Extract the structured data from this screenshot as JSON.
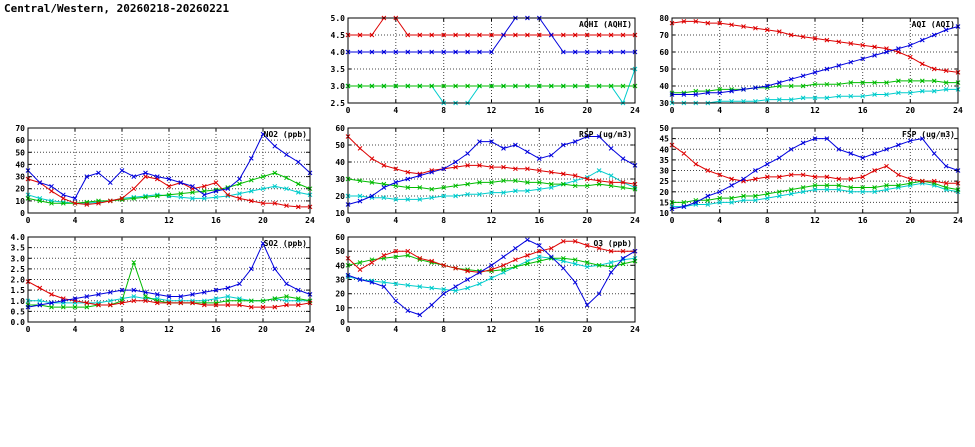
{
  "page_title": "Central/Western, 20260218-20260221",
  "colors": {
    "blue": "#0000dd",
    "red": "#dd0000",
    "green": "#00bb00",
    "cyan": "#00cccc",
    "grid": "#444444",
    "axis": "#000000",
    "background": "#ffffff"
  },
  "chart_data": [
    {
      "id": "aqhi",
      "type": "line",
      "title": "AQHI (AQHI)",
      "xlim": [
        0,
        24
      ],
      "xticks": [
        0,
        4,
        8,
        12,
        16,
        20,
        24
      ],
      "ylim": [
        2.5,
        5.0
      ],
      "yticks": [
        2.5,
        3.0,
        3.5,
        4.0,
        4.5,
        5.0
      ],
      "ytick_labels": [
        "2.5",
        "3.0",
        "3.5",
        "4.0",
        "4.5",
        "5.0"
      ],
      "series": [
        {
          "name": "station-cyan",
          "color": "#00cccc",
          "values": [
            3,
            3,
            3,
            3,
            3,
            3,
            3,
            3,
            2.5,
            2.5,
            2.5,
            3,
            3,
            3,
            3,
            3,
            3,
            3,
            3,
            3,
            3,
            3,
            3,
            2.5,
            3.5
          ]
        },
        {
          "name": "station-green",
          "color": "#00bb00",
          "values": [
            3,
            3,
            3,
            3,
            3,
            3,
            3,
            3,
            3,
            3,
            3,
            3,
            3,
            3,
            3,
            3,
            3,
            3,
            3,
            3,
            3,
            3,
            3,
            3,
            3
          ]
        },
        {
          "name": "station-red",
          "color": "#dd0000",
          "values": [
            4.5,
            4.5,
            4.5,
            5,
            5,
            4.5,
            4.5,
            4.5,
            4.5,
            4.5,
            4.5,
            4.5,
            4.5,
            4.5,
            4.5,
            4.5,
            4.5,
            4.5,
            4.5,
            4.5,
            4.5,
            4.5,
            4.5,
            4.5,
            4.5
          ]
        },
        {
          "name": "station-blue",
          "color": "#0000dd",
          "values": [
            4,
            4,
            4,
            4,
            4,
            4,
            4,
            4,
            4,
            4,
            4,
            4,
            4,
            4.5,
            5,
            5,
            5,
            4.5,
            4,
            4,
            4,
            4,
            4,
            4,
            4
          ]
        }
      ]
    },
    {
      "id": "aqi",
      "type": "line",
      "title": "AQI (AQI)",
      "xlim": [
        0,
        24
      ],
      "xticks": [
        0,
        4,
        8,
        12,
        16,
        20,
        24
      ],
      "ylim": [
        30,
        80
      ],
      "yticks": [
        30,
        40,
        50,
        60,
        70,
        80
      ],
      "ytick_labels": [
        "30",
        "40",
        "50",
        "60",
        "70",
        "80"
      ],
      "series": [
        {
          "name": "station-cyan",
          "color": "#00cccc",
          "values": [
            30,
            30,
            30,
            30,
            31,
            31,
            31,
            31,
            32,
            32,
            32,
            33,
            33,
            33,
            34,
            34,
            34,
            35,
            35,
            36,
            36,
            37,
            37,
            38,
            38
          ]
        },
        {
          "name": "station-green",
          "color": "#00bb00",
          "values": [
            36,
            36,
            37,
            37,
            38,
            38,
            38,
            39,
            39,
            40,
            40,
            40,
            41,
            41,
            41,
            42,
            42,
            42,
            42,
            43,
            43,
            43,
            43,
            42,
            42
          ]
        },
        {
          "name": "station-red",
          "color": "#dd0000",
          "values": [
            77,
            78,
            78,
            77,
            77,
            76,
            75,
            74,
            73,
            72,
            70,
            69,
            68,
            67,
            66,
            65,
            64,
            63,
            62,
            60,
            57,
            53,
            50,
            49,
            48
          ]
        },
        {
          "name": "station-blue",
          "color": "#0000dd",
          "values": [
            35,
            35,
            35,
            36,
            36,
            37,
            38,
            39,
            40,
            42,
            44,
            46,
            48,
            50,
            52,
            54,
            56,
            58,
            60,
            62,
            64,
            67,
            70,
            73,
            75
          ]
        }
      ]
    },
    {
      "id": "no2",
      "type": "line",
      "title": "NO2 (ppb)",
      "xlim": [
        0,
        24
      ],
      "xticks": [
        0,
        4,
        8,
        12,
        16,
        20,
        24
      ],
      "ylim": [
        0,
        70
      ],
      "yticks": [
        0,
        10,
        20,
        30,
        40,
        50,
        60,
        70
      ],
      "ytick_labels": [
        "0",
        "10",
        "20",
        "30",
        "40",
        "50",
        "60",
        "70"
      ],
      "series": [
        {
          "name": "station-cyan",
          "color": "#00cccc",
          "values": [
            15,
            12,
            10,
            9,
            8,
            8,
            9,
            10,
            12,
            13,
            14,
            15,
            14,
            13,
            12,
            12,
            13,
            14,
            16,
            18,
            20,
            22,
            20,
            17,
            15
          ]
        },
        {
          "name": "station-green",
          "color": "#00bb00",
          "values": [
            12,
            10,
            8,
            8,
            8,
            9,
            10,
            10,
            11,
            12,
            13,
            14,
            15,
            16,
            17,
            18,
            19,
            21,
            24,
            27,
            30,
            33,
            29,
            24,
            20
          ]
        },
        {
          "name": "station-red",
          "color": "#dd0000",
          "values": [
            28,
            25,
            18,
            12,
            8,
            7,
            8,
            10,
            12,
            20,
            30,
            28,
            22,
            25,
            20,
            22,
            25,
            15,
            12,
            10,
            8,
            8,
            6,
            5,
            5
          ]
        },
        {
          "name": "station-blue",
          "color": "#0000dd",
          "values": [
            35,
            25,
            22,
            15,
            12,
            30,
            33,
            25,
            35,
            30,
            33,
            30,
            28,
            25,
            22,
            15,
            18,
            20,
            28,
            45,
            65,
            55,
            48,
            42,
            33
          ]
        }
      ]
    },
    {
      "id": "rsp",
      "type": "line",
      "title": "RSP (ug/m3)",
      "xlim": [
        0,
        24
      ],
      "xticks": [
        0,
        4,
        8,
        12,
        16,
        20,
        24
      ],
      "ylim": [
        10,
        60
      ],
      "yticks": [
        10,
        20,
        30,
        40,
        50,
        60
      ],
      "ytick_labels": [
        "10",
        "20",
        "30",
        "40",
        "50",
        "60"
      ],
      "series": [
        {
          "name": "station-cyan",
          "color": "#00cccc",
          "values": [
            20,
            20,
            19,
            19,
            18,
            18,
            18,
            19,
            20,
            20,
            21,
            21,
            22,
            22,
            23,
            23,
            24,
            25,
            27,
            29,
            31,
            35,
            32,
            28,
            25
          ]
        },
        {
          "name": "station-green",
          "color": "#00bb00",
          "values": [
            30,
            29,
            28,
            27,
            26,
            25,
            25,
            24,
            25,
            26,
            27,
            28,
            28,
            29,
            29,
            28,
            28,
            27,
            27,
            26,
            26,
            27,
            26,
            25,
            24
          ]
        },
        {
          "name": "station-red",
          "color": "#dd0000",
          "values": [
            55,
            48,
            42,
            38,
            36,
            34,
            33,
            35,
            36,
            37,
            38,
            38,
            37,
            37,
            36,
            36,
            35,
            34,
            33,
            32,
            30,
            29,
            28,
            28,
            27
          ]
        },
        {
          "name": "station-blue",
          "color": "#0000dd",
          "values": [
            15,
            17,
            20,
            25,
            28,
            30,
            32,
            34,
            36,
            40,
            45,
            52,
            52,
            48,
            50,
            46,
            42,
            44,
            50,
            52,
            55,
            55,
            48,
            42,
            38
          ]
        }
      ]
    },
    {
      "id": "fsp",
      "type": "line",
      "title": "FSP (ug/m3)",
      "xlim": [
        0,
        24
      ],
      "xticks": [
        0,
        4,
        8,
        12,
        16,
        20,
        24
      ],
      "ylim": [
        10,
        50
      ],
      "yticks": [
        10,
        15,
        20,
        25,
        30,
        35,
        40,
        45,
        50
      ],
      "ytick_labels": [
        "10",
        "15",
        "20",
        "25",
        "30",
        "35",
        "40",
        "45",
        "50"
      ],
      "series": [
        {
          "name": "station-cyan",
          "color": "#00cccc",
          "values": [
            13,
            13,
            14,
            14,
            15,
            15,
            16,
            16,
            17,
            18,
            19,
            20,
            21,
            21,
            21,
            20,
            20,
            20,
            21,
            22,
            23,
            24,
            23,
            21,
            20
          ]
        },
        {
          "name": "station-green",
          "color": "#00bb00",
          "values": [
            15,
            15,
            16,
            16,
            17,
            17,
            18,
            18,
            19,
            20,
            21,
            22,
            23,
            23,
            23,
            22,
            22,
            22,
            23,
            23,
            24,
            25,
            24,
            22,
            21
          ]
        },
        {
          "name": "station-red",
          "color": "#dd0000",
          "values": [
            42,
            38,
            33,
            30,
            28,
            26,
            25,
            26,
            27,
            27,
            28,
            28,
            27,
            27,
            26,
            26,
            27,
            30,
            32,
            28,
            26,
            25,
            25,
            24,
            24
          ]
        },
        {
          "name": "station-blue",
          "color": "#0000dd",
          "values": [
            12,
            13,
            15,
            18,
            20,
            23,
            26,
            30,
            33,
            36,
            40,
            43,
            45,
            45,
            40,
            38,
            36,
            38,
            40,
            42,
            44,
            45,
            38,
            32,
            30
          ]
        }
      ]
    },
    {
      "id": "so2",
      "type": "line",
      "title": "SO2 (ppb)",
      "xlim": [
        0,
        24
      ],
      "xticks": [
        0,
        4,
        8,
        12,
        16,
        20,
        24
      ],
      "ylim": [
        0.0,
        4.0
      ],
      "yticks": [
        0.0,
        0.5,
        1.0,
        1.5,
        2.0,
        2.5,
        3.0,
        3.5,
        4.0
      ],
      "ytick_labels": [
        "0.0",
        "0.5",
        "1.0",
        "1.5",
        "2.0",
        "2.5",
        "3.0",
        "3.5",
        "4.0"
      ],
      "series": [
        {
          "name": "station-cyan",
          "color": "#00cccc",
          "values": [
            1.0,
            1.0,
            0.9,
            0.9,
            0.9,
            0.9,
            0.9,
            1.0,
            1.1,
            1.2,
            1.1,
            1.1,
            1.0,
            1.0,
            1.0,
            1.0,
            1.1,
            1.2,
            1.1,
            1.0,
            1.0,
            1.1,
            1.0,
            1.0,
            1.0
          ]
        },
        {
          "name": "station-green",
          "color": "#00bb00",
          "values": [
            0.8,
            0.8,
            0.7,
            0.7,
            0.7,
            0.7,
            0.8,
            0.8,
            1.0,
            2.8,
            1.2,
            1.0,
            0.9,
            0.9,
            0.9,
            0.9,
            0.9,
            1.0,
            1.0,
            1.0,
            1.0,
            1.1,
            1.2,
            1.1,
            1.0
          ]
        },
        {
          "name": "station-red",
          "color": "#dd0000",
          "values": [
            1.9,
            1.6,
            1.3,
            1.1,
            1.0,
            0.9,
            0.8,
            0.8,
            0.9,
            1.0,
            1.0,
            0.9,
            0.9,
            0.9,
            0.9,
            0.8,
            0.8,
            0.8,
            0.8,
            0.7,
            0.7,
            0.7,
            0.8,
            0.8,
            0.9
          ]
        },
        {
          "name": "station-blue",
          "color": "#0000dd",
          "values": [
            0.7,
            0.8,
            0.9,
            1.0,
            1.1,
            1.2,
            1.3,
            1.4,
            1.5,
            1.5,
            1.4,
            1.3,
            1.2,
            1.2,
            1.3,
            1.4,
            1.5,
            1.6,
            1.8,
            2.5,
            3.7,
            2.5,
            1.8,
            1.5,
            1.3
          ]
        }
      ]
    },
    {
      "id": "o3",
      "type": "line",
      "title": "O3 (ppb)",
      "xlim": [
        0,
        24
      ],
      "xticks": [
        0,
        4,
        8,
        12,
        16,
        20,
        24
      ],
      "ylim": [
        0,
        60
      ],
      "yticks": [
        0,
        10,
        20,
        30,
        40,
        50,
        60
      ],
      "ytick_labels": [
        "0",
        "10",
        "20",
        "30",
        "40",
        "50",
        "60"
      ],
      "series": [
        {
          "name": "station-cyan",
          "color": "#00cccc",
          "values": [
            32,
            30,
            29,
            28,
            27,
            26,
            25,
            24,
            23,
            22,
            24,
            27,
            31,
            35,
            39,
            43,
            46,
            45,
            43,
            41,
            39,
            40,
            42,
            44,
            45
          ]
        },
        {
          "name": "station-green",
          "color": "#00bb00",
          "values": [
            40,
            42,
            44,
            45,
            46,
            47,
            44,
            42,
            40,
            38,
            37,
            36,
            36,
            37,
            39,
            41,
            43,
            45,
            45,
            44,
            42,
            40,
            39,
            41,
            43
          ]
        },
        {
          "name": "station-red",
          "color": "#dd0000",
          "values": [
            45,
            37,
            42,
            47,
            50,
            50,
            45,
            43,
            40,
            38,
            36,
            35,
            37,
            40,
            44,
            47,
            50,
            52,
            57,
            57,
            54,
            52,
            50,
            50,
            50
          ]
        },
        {
          "name": "station-blue",
          "color": "#0000dd",
          "values": [
            33,
            30,
            28,
            25,
            15,
            8,
            5,
            12,
            20,
            25,
            30,
            35,
            40,
            46,
            52,
            58,
            54,
            46,
            38,
            28,
            12,
            20,
            35,
            45,
            50
          ]
        }
      ]
    }
  ]
}
